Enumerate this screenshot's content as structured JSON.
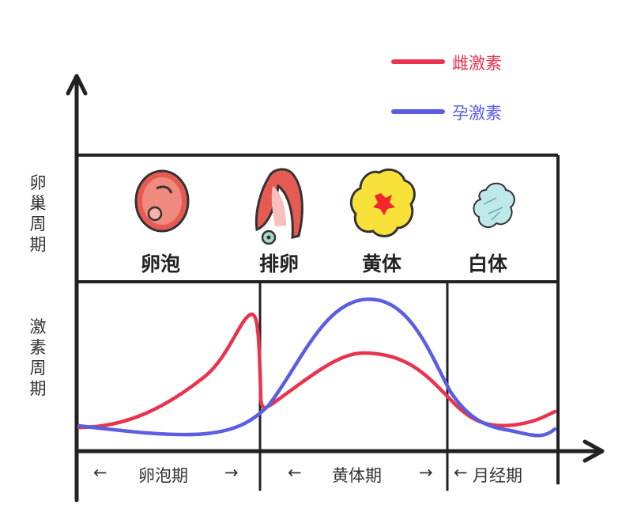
{
  "legend": [
    {
      "label": "雌激素",
      "color": "#e8344e"
    },
    {
      "label": "孕激素",
      "color": "#5a5ee0"
    }
  ],
  "row_labels": {
    "ovary": "卵巢周期",
    "hormone": "激素周期"
  },
  "ovary_stages": [
    "卵泡",
    "排卵",
    "黄体",
    "白体"
  ],
  "phases": {
    "follicular": "卵泡期",
    "luteal": "黄体期",
    "menstrual": "月经期"
  },
  "arrows": {
    "left": "←",
    "right": "→",
    "menstrual_left": "←"
  },
  "icons": [
    "follicle-icon",
    "ovulation-icon",
    "corpus-luteum-icon",
    "corpus-albicans-icon"
  ]
}
